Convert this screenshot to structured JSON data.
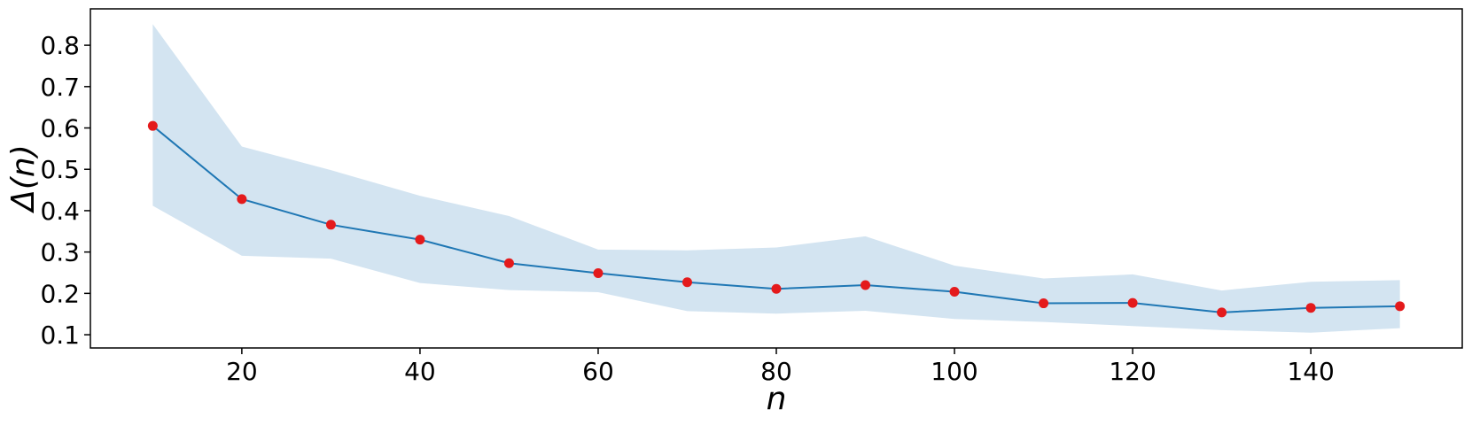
{
  "chart_data": {
    "type": "line",
    "title": "",
    "xlabel": "n",
    "ylabel": "Δ(n)",
    "xlim": [
      3,
      157
    ],
    "ylim": [
      0.068,
      0.888
    ],
    "xticks": [
      20,
      40,
      60,
      80,
      100,
      120,
      140
    ],
    "yticks": [
      0.1,
      0.2,
      0.3,
      0.4,
      0.5,
      0.6,
      0.7,
      0.8
    ],
    "grid": false,
    "x": [
      10,
      20,
      30,
      40,
      50,
      60,
      70,
      80,
      90,
      100,
      110,
      120,
      130,
      140,
      150
    ],
    "series": [
      {
        "values": [
          0.605,
          0.428,
          0.366,
          0.33,
          0.273,
          0.249,
          0.227,
          0.211,
          0.22,
          0.204,
          0.176,
          0.177,
          0.154,
          0.165,
          0.169
        ],
        "line_color": "#1f77b4",
        "marker_color": "#e41a1c"
      }
    ],
    "band": {
      "upper": [
        0.851,
        0.555,
        0.498,
        0.436,
        0.387,
        0.306,
        0.304,
        0.311,
        0.338,
        0.267,
        0.236,
        0.246,
        0.207,
        0.228,
        0.232
      ],
      "lower": [
        0.412,
        0.291,
        0.284,
        0.225,
        0.208,
        0.203,
        0.157,
        0.151,
        0.158,
        0.138,
        0.131,
        0.121,
        0.111,
        0.105,
        0.116
      ],
      "color": "#d3e4f1"
    }
  }
}
